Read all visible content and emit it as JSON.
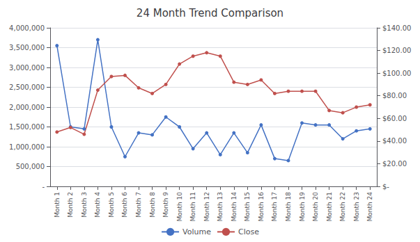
{
  "chart_data": {
    "type": "line",
    "title": "24 Month Trend Comparison",
    "categories": [
      "Month 1",
      "Month 2",
      "Month 3",
      "Month 4",
      "Month 5",
      "Month 6",
      "Month 7",
      "Month 8",
      "Month 9",
      "Month 10",
      "Month 11",
      "Month 12",
      "Month 13",
      "Month 14",
      "Month 15",
      "Month 16",
      "Month 17",
      "Month 18",
      "Month 19",
      "Month 20",
      "Month 21",
      "Month 22",
      "Month 23",
      "Month 24"
    ],
    "series": [
      {
        "name": "Volume",
        "color": "#4472C4",
        "marker": "circle",
        "values": [
          3550000,
          1500000,
          1450000,
          3700000,
          1500000,
          750000,
          1350000,
          1300000,
          1750000,
          1500000,
          950000,
          1350000,
          800000,
          1350000,
          850000,
          1550000,
          700000,
          650000,
          1600000,
          1550000,
          1550000,
          1200000,
          1400000,
          1450000
        ]
      },
      {
        "name": "Close",
        "color": "#C0504D",
        "marker": "circle",
        "axis": "y2",
        "values": [
          48,
          52,
          46,
          85,
          97,
          98,
          87,
          82,
          90,
          108,
          115,
          118,
          115,
          92,
          90,
          94,
          82,
          84,
          84,
          84,
          67,
          65,
          70,
          72
        ]
      }
    ],
    "ylim": [
      0,
      4000000
    ],
    "yticks": [
      {
        "value": 0,
        "label": "-"
      },
      {
        "value": 500000,
        "label": "500,000"
      },
      {
        "value": 1000000,
        "label": "1,000,000"
      },
      {
        "value": 1500000,
        "label": "1,500,000"
      },
      {
        "value": 2000000,
        "label": "2,000,000"
      },
      {
        "value": 2500000,
        "label": "2,500,000"
      },
      {
        "value": 3000000,
        "label": "3,000,000"
      },
      {
        "value": 3500000,
        "label": "3,500,000"
      },
      {
        "value": 4000000,
        "label": "4,000,000"
      }
    ],
    "y2lim": [
      0,
      140
    ],
    "y2ticks": [
      {
        "value": 0,
        "label": "$-"
      },
      {
        "value": 20,
        "label": "$20.00"
      },
      {
        "value": 40,
        "label": "$40.00"
      },
      {
        "value": 60,
        "label": "$60.00"
      },
      {
        "value": 80,
        "label": "$80.00"
      },
      {
        "value": 100,
        "label": "$100.00"
      },
      {
        "value": 120,
        "label": "$120.00"
      },
      {
        "value": 140,
        "label": "$140.00"
      }
    ],
    "grid": true,
    "legend": "bottom"
  }
}
